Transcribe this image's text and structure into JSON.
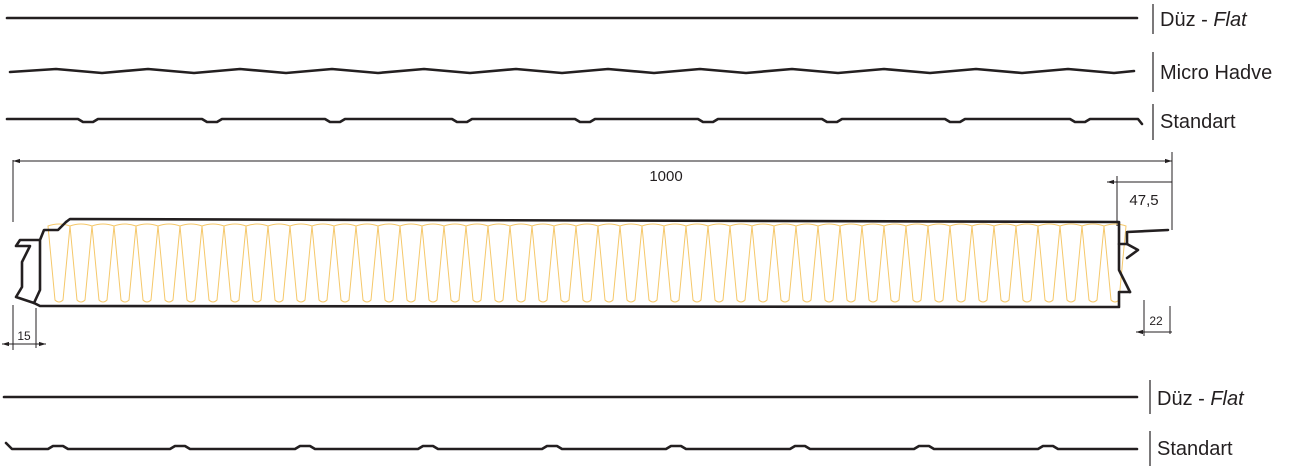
{
  "profiles_top": [
    {
      "name": "Düz - ",
      "name_italic": "Flat"
    },
    {
      "name": "Micro Hadve"
    },
    {
      "name": "Standart"
    }
  ],
  "dimensions": {
    "width": "1000",
    "overlap": "47,5",
    "left_edge": "15",
    "right_edge": "22"
  },
  "profiles_bottom": [
    {
      "name": "Düz - ",
      "name_italic": "Flat"
    },
    {
      "name": "Standart"
    }
  ],
  "colors": {
    "line": "#231f20",
    "insulation": "#f5c86a"
  }
}
